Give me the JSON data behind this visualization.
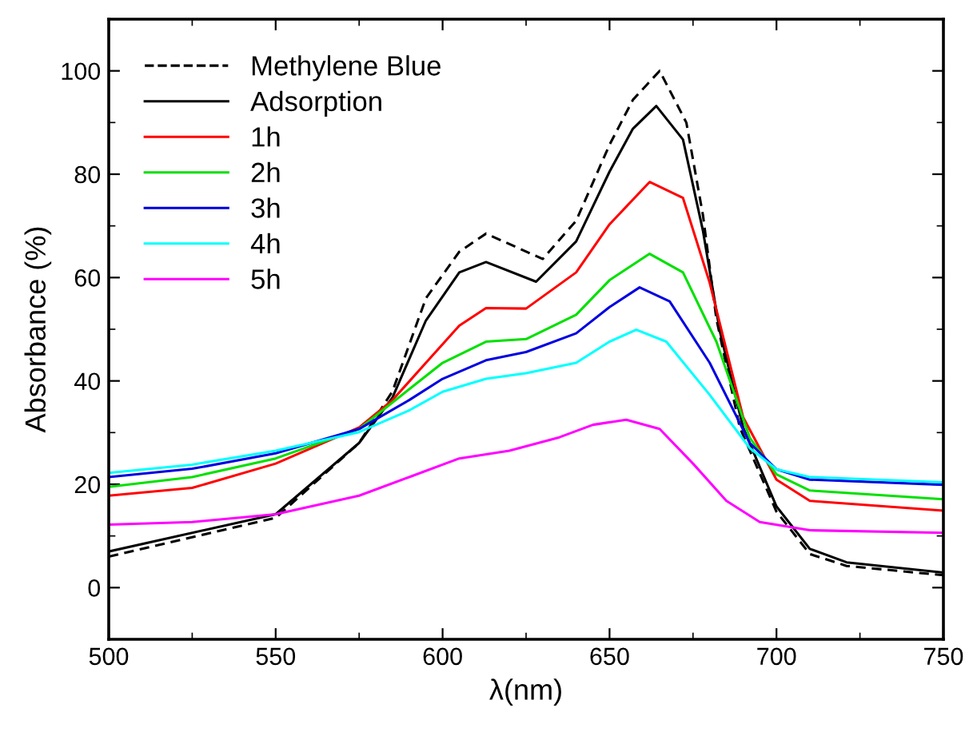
{
  "chart_data": {
    "type": "line",
    "xlabel": "λ(nm)",
    "ylabel": "Absorbance (%)",
    "xlim": [
      500,
      750
    ],
    "xticks": [
      500,
      550,
      600,
      650,
      700,
      750
    ],
    "ylim": [
      -10,
      110
    ],
    "yticks": [
      0,
      20,
      40,
      60,
      80,
      100
    ],
    "grid": false,
    "legend": "top left",
    "series": [
      {
        "name": "Methylene Blue",
        "color": "#000000",
        "line_style": "dashed",
        "x": [
          500,
          550,
          575,
          585,
          595,
          605,
          613,
          630,
          640,
          650,
          657,
          665,
          673,
          678,
          682,
          689,
          700,
          710,
          721,
          750
        ],
        "values": [
          6.0,
          13.5,
          28,
          38,
          56,
          65,
          68.5,
          63.6,
          71,
          85.7,
          94.4,
          100,
          90,
          72,
          52,
          31,
          14.7,
          6.5,
          4.2,
          2.4
        ]
      },
      {
        "name": "Adsorption",
        "color": "#000000",
        "line_style": "solid",
        "x": [
          500,
          550,
          575,
          585,
          595,
          605,
          613,
          628,
          640,
          650,
          657,
          664,
          672,
          678,
          683,
          690,
          700,
          710,
          721,
          750
        ],
        "values": [
          7.0,
          14.2,
          28,
          36.8,
          51.7,
          61,
          63,
          59.2,
          67,
          80.5,
          88.8,
          93.2,
          86.7,
          69,
          49.7,
          31,
          15.7,
          7.5,
          4.9,
          2.9
        ]
      },
      {
        "name": "1h",
        "color": "#ff0000",
        "line_style": "solid",
        "x": [
          500,
          525,
          550,
          575,
          585,
          595,
          605,
          613,
          625,
          640,
          650,
          662,
          672,
          680,
          690,
          700,
          710,
          750
        ],
        "values": [
          17.8,
          19.3,
          24,
          31,
          36.3,
          43.5,
          50.7,
          54.1,
          54,
          61,
          70.3,
          78.5,
          75.4,
          59,
          33,
          20.9,
          16.8,
          14.9
        ]
      },
      {
        "name": "2h",
        "color": "#00e000",
        "line_style": "solid",
        "x": [
          500,
          525,
          550,
          575,
          590,
          600,
          613,
          625,
          640,
          650,
          662,
          672,
          682,
          692,
          700,
          710,
          750
        ],
        "values": [
          19.5,
          21.4,
          25,
          30.7,
          38.4,
          43.5,
          47.6,
          48.1,
          52.8,
          59.5,
          64.6,
          61,
          47.6,
          29,
          21.9,
          18.8,
          17.1
        ]
      },
      {
        "name": "3h",
        "color": "#0000e0",
        "line_style": "solid",
        "x": [
          500,
          525,
          550,
          575,
          590,
          600,
          613,
          625,
          640,
          650,
          659,
          668,
          680,
          692,
          700,
          710,
          750
        ],
        "values": [
          21.4,
          23,
          26,
          30.7,
          36.3,
          40.4,
          44,
          45.6,
          49.2,
          54.3,
          58.1,
          55.4,
          43.5,
          28,
          22.9,
          20.9,
          19.9
        ]
      },
      {
        "name": "4h",
        "color": "#00ffff",
        "line_style": "solid",
        "x": [
          500,
          525,
          550,
          575,
          590,
          600,
          613,
          625,
          640,
          650,
          658,
          667,
          680,
          692,
          700,
          710,
          750
        ],
        "values": [
          22.2,
          23.8,
          26.5,
          30.1,
          34.3,
          37.9,
          40.4,
          41.5,
          43.5,
          47.6,
          49.9,
          47.6,
          37.3,
          27,
          22.9,
          21.4,
          20.4
        ]
      },
      {
        "name": "5h",
        "color": "#ff00ff",
        "line_style": "solid",
        "x": [
          500,
          525,
          550,
          575,
          590,
          605,
          620,
          635,
          645,
          655,
          665,
          675,
          685,
          695,
          710,
          750
        ],
        "values": [
          12.2,
          12.7,
          14.2,
          17.8,
          21.4,
          25,
          26.5,
          29.1,
          31.5,
          32.5,
          30.7,
          24,
          16.8,
          12.7,
          11.1,
          10.6
        ]
      }
    ]
  }
}
